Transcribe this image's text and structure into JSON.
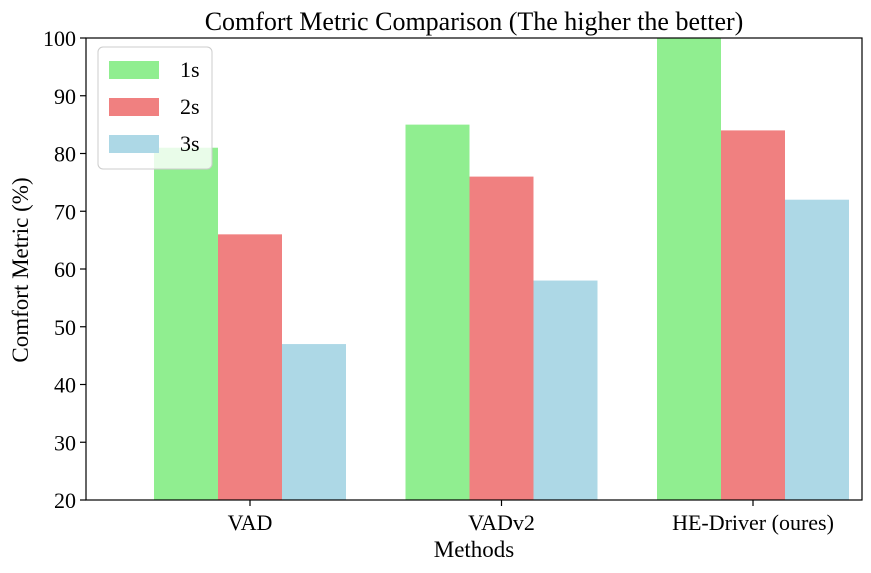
{
  "chart_data": {
    "type": "bar",
    "title": "Comfort Metric Comparison (The higher the better)",
    "xlabel": "Methods",
    "ylabel": "Comfort Metric (%)",
    "categories": [
      "VAD",
      "VADv2",
      "HE-Driver (oures)"
    ],
    "series": [
      {
        "name": "1s",
        "color": "#90ee90",
        "values": [
          81,
          85,
          100
        ]
      },
      {
        "name": "2s",
        "color": "#f08080",
        "values": [
          66,
          76,
          84
        ]
      },
      {
        "name": "3s",
        "color": "#add8e6",
        "values": [
          47,
          58,
          72
        ]
      }
    ],
    "ylim": [
      20,
      100
    ],
    "yticks": [
      "20",
      "30",
      "40",
      "50",
      "60",
      "70",
      "80",
      "90",
      "100"
    ],
    "grid": false,
    "legend": "top-left"
  }
}
